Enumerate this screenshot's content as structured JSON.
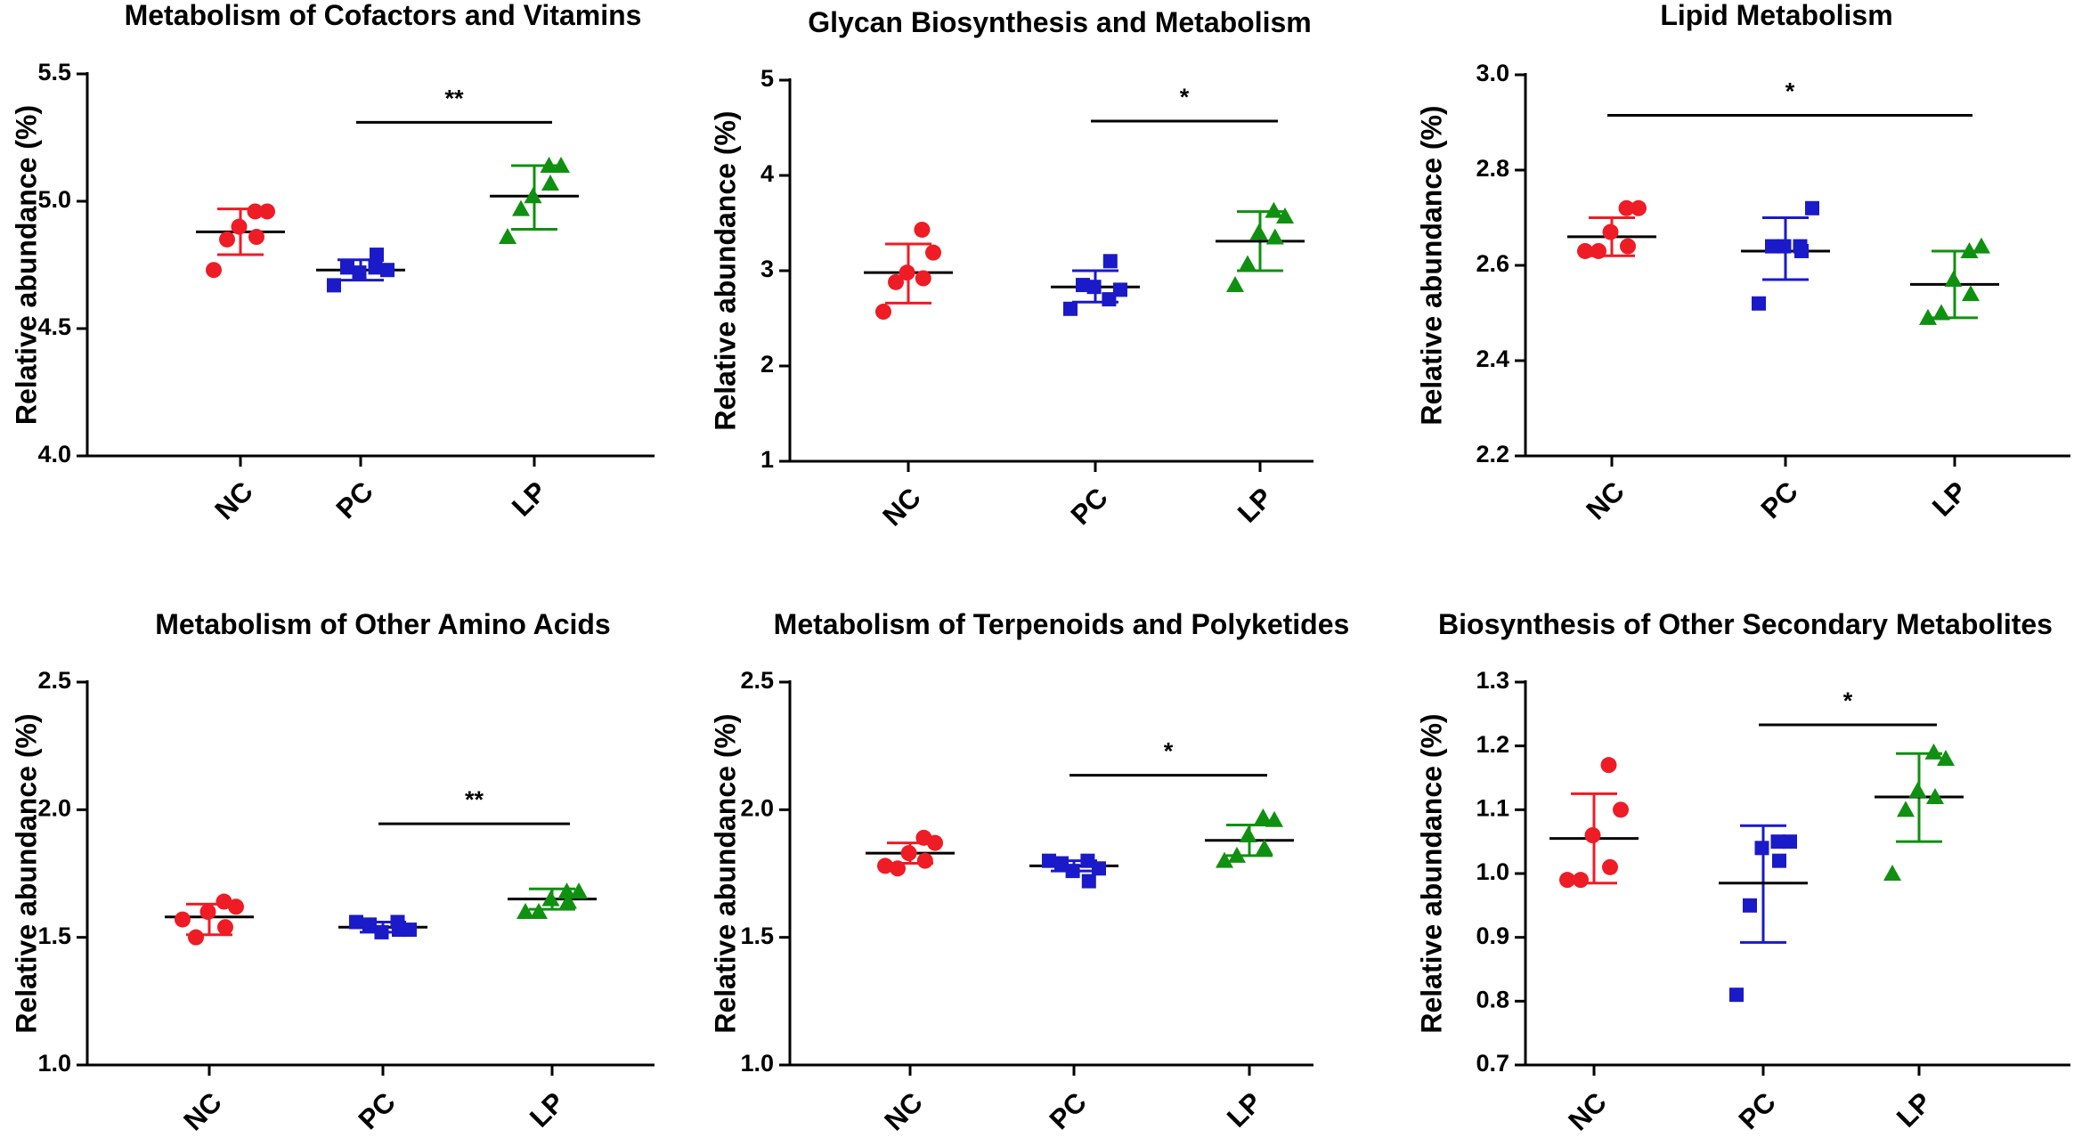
{
  "figure": {
    "colors": {
      "NC": "#ee1c25",
      "PC": "#1a1ac8",
      "LP": "#109010",
      "axis": "#000000"
    },
    "markers": {
      "NC": "circle",
      "PC": "square",
      "LP": "triangle"
    }
  },
  "chart_data": [
    {
      "type": "scatter",
      "title": "Metabolism of Cofactors and Vitamins",
      "ylabel": "Relative abundance (%)",
      "ylim": [
        4.0,
        5.5
      ],
      "yticks": [
        4.0,
        4.5,
        5.0,
        5.5
      ],
      "ytick_labels": [
        "4.0",
        "4.5",
        "5.0",
        "5.5"
      ],
      "categories": [
        "NC",
        "PC",
        "LP"
      ],
      "series": [
        {
          "name": "NC",
          "values": [
            4.96,
            4.96,
            4.9,
            4.86,
            4.85,
            4.73
          ],
          "mean": 4.88,
          "error_low": 4.79,
          "error_high": 4.97
        },
        {
          "name": "PC",
          "values": [
            4.74,
            4.73,
            4.72,
            4.79,
            4.74,
            4.67
          ],
          "mean": 4.73,
          "error_low": 4.69,
          "error_high": 4.77
        },
        {
          "name": "LP",
          "values": [
            5.14,
            5.14,
            5.02,
            5.07,
            4.97,
            4.86
          ],
          "mean": 5.02,
          "error_low": 4.89,
          "error_high": 5.14
        }
      ],
      "significance": [
        {
          "from": "PC",
          "to": "LP",
          "y": 5.31,
          "label": "**"
        }
      ]
    },
    {
      "type": "scatter",
      "title": "Glycan Biosynthesis and Metabolism",
      "ylabel": "Relative abundance (%)",
      "ylim": [
        1,
        5
      ],
      "yticks": [
        1,
        2,
        3,
        4,
        5
      ],
      "ytick_labels": [
        "1",
        "2",
        "3",
        "4",
        "5"
      ],
      "categories": [
        "NC",
        "PC",
        "LP"
      ],
      "series": [
        {
          "name": "NC",
          "values": [
            3.43,
            3.19,
            2.98,
            2.92,
            2.88,
            2.57
          ],
          "mean": 2.98,
          "error_low": 2.66,
          "error_high": 3.28
        },
        {
          "name": "PC",
          "values": [
            2.7,
            2.8,
            2.83,
            3.1,
            2.85,
            2.6
          ],
          "mean": 2.83,
          "error_low": 2.67,
          "error_high": 3.0
        },
        {
          "name": "LP",
          "values": [
            3.63,
            3.57,
            3.4,
            3.35,
            3.07,
            2.85
          ],
          "mean": 3.31,
          "error_low": 3.0,
          "error_high": 3.62
        }
      ],
      "significance": [
        {
          "from": "PC",
          "to": "LP",
          "y": 4.57,
          "label": "*"
        }
      ]
    },
    {
      "type": "scatter",
      "title": "Lipid Metabolism",
      "ylabel": "Relative abundance (%)",
      "ylim": [
        2.2,
        3.0
      ],
      "yticks": [
        2.2,
        2.4,
        2.6,
        2.8,
        3.0
      ],
      "ytick_labels": [
        "2.2",
        "2.4",
        "2.6",
        "2.8",
        "3.0"
      ],
      "categories": [
        "NC",
        "PC",
        "LP"
      ],
      "series": [
        {
          "name": "NC",
          "values": [
            2.72,
            2.72,
            2.67,
            2.64,
            2.63,
            2.63
          ],
          "mean": 2.66,
          "error_low": 2.62,
          "error_high": 2.7
        },
        {
          "name": "PC",
          "values": [
            2.64,
            2.72,
            2.64,
            2.63,
            2.64,
            2.52
          ],
          "mean": 2.63,
          "error_low": 2.57,
          "error_high": 2.7
        },
        {
          "name": "LP",
          "values": [
            2.63,
            2.64,
            2.57,
            2.54,
            2.5,
            2.49
          ],
          "mean": 2.56,
          "error_low": 2.49,
          "error_high": 2.63
        }
      ],
      "significance": [
        {
          "from": "NC",
          "to": "LP",
          "y": 2.915,
          "label": "*"
        }
      ]
    },
    {
      "type": "scatter",
      "title": "Metabolism of Other Amino Acids",
      "ylabel": "Relative abundance (%)",
      "ylim": [
        1.0,
        2.5
      ],
      "yticks": [
        1.0,
        1.5,
        2.0,
        2.5
      ],
      "ytick_labels": [
        "1.0",
        "1.5",
        "2.0",
        "2.5"
      ],
      "categories": [
        "NC",
        "PC",
        "LP"
      ],
      "series": [
        {
          "name": "NC",
          "values": [
            1.64,
            1.62,
            1.6,
            1.54,
            1.5,
            1.57
          ],
          "mean": 1.58,
          "error_low": 1.51,
          "error_high": 1.63
        },
        {
          "name": "PC",
          "values": [
            1.56,
            1.53,
            1.52,
            1.53,
            1.55,
            1.56
          ],
          "mean": 1.54,
          "error_low": 1.52,
          "error_high": 1.56
        },
        {
          "name": "LP",
          "values": [
            1.68,
            1.68,
            1.65,
            1.64,
            1.6,
            1.6
          ],
          "mean": 1.65,
          "error_low": 1.61,
          "error_high": 1.69
        }
      ],
      "significance": [
        {
          "from": "PC",
          "to": "LP",
          "y": 1.945,
          "label": "**"
        }
      ]
    },
    {
      "type": "scatter",
      "title": "Metabolism of Terpenoids and Polyketides",
      "ylabel": "Relative abundance (%)",
      "ylim": [
        1.0,
        2.5
      ],
      "yticks": [
        1.0,
        1.5,
        2.0,
        2.5
      ],
      "ytick_labels": [
        "1.0",
        "1.5",
        "2.0",
        "2.5"
      ],
      "categories": [
        "NC",
        "PC",
        "LP"
      ],
      "series": [
        {
          "name": "NC",
          "values": [
            1.89,
            1.87,
            1.83,
            1.8,
            1.77,
            1.78
          ],
          "mean": 1.83,
          "error_low": 1.79,
          "error_high": 1.87
        },
        {
          "name": "PC",
          "values": [
            1.8,
            1.77,
            1.76,
            1.72,
            1.79,
            1.8
          ],
          "mean": 1.78,
          "error_low": 1.76,
          "error_high": 1.8
        },
        {
          "name": "LP",
          "values": [
            1.97,
            1.96,
            1.9,
            1.85,
            1.82,
            1.8
          ],
          "mean": 1.88,
          "error_low": 1.82,
          "error_high": 1.94
        }
      ],
      "significance": [
        {
          "from": "PC",
          "to": "LP",
          "y": 2.135,
          "label": "*"
        }
      ]
    },
    {
      "type": "scatter",
      "title": "Biosynthesis of Other Secondary Metabolites",
      "ylabel": "Relative abundance (%)",
      "ylim": [
        0.7,
        1.3
      ],
      "yticks": [
        0.7,
        0.8,
        0.9,
        1.0,
        1.1,
        1.2,
        1.3
      ],
      "ytick_labels": [
        "0.7",
        "0.8",
        "0.9",
        "1.0",
        "1.1",
        "1.2",
        "1.3"
      ],
      "categories": [
        "NC",
        "PC",
        "LP"
      ],
      "series": [
        {
          "name": "NC",
          "values": [
            1.17,
            1.1,
            1.06,
            1.01,
            0.99,
            0.99
          ],
          "mean": 1.055,
          "error_low": 0.985,
          "error_high": 1.125
        },
        {
          "name": "PC",
          "values": [
            1.05,
            1.05,
            1.04,
            1.02,
            0.95,
            0.81
          ],
          "mean": 0.985,
          "error_low": 0.892,
          "error_high": 1.075
        },
        {
          "name": "LP",
          "values": [
            1.19,
            1.18,
            1.13,
            1.12,
            1.1,
            1.0
          ],
          "mean": 1.12,
          "error_low": 1.05,
          "error_high": 1.188
        }
      ],
      "significance": [
        {
          "from": "PC",
          "to": "LP",
          "y": 1.233,
          "label": "*"
        }
      ]
    }
  ]
}
